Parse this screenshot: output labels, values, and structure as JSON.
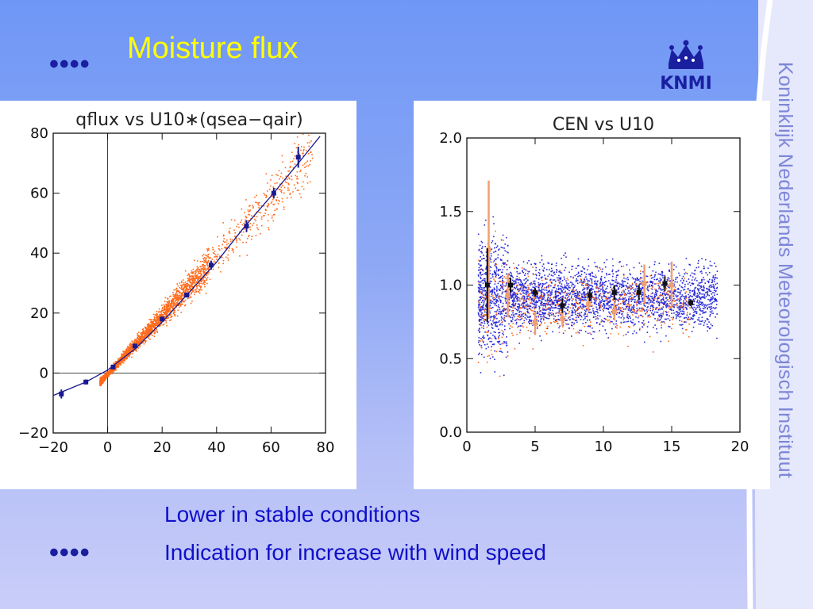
{
  "slide": {
    "title": "Moisture flux",
    "bullet_marker": "••••",
    "bullets": [
      "Lower in stable conditions",
      "Indication for increase with wind speed"
    ],
    "vertical_text": "Koninklijk Nederlands Meteorologisch Instituut",
    "logo_text": "KNMI",
    "colors": {
      "title": "#ffff00",
      "bullet_text": "#1010c8",
      "bullet_marker": "#1a1fa0",
      "scatter_orange": "#ff6a1a",
      "scatter_blue": "#2a2ad8",
      "errorbar_orange": "#f0a070",
      "fit_line": "#1a1a90"
    }
  },
  "chart_data": [
    {
      "type": "scatter",
      "title": "qflux vs U10∗(qsea−qair)",
      "xlim": [
        -20,
        80
      ],
      "ylim": [
        -20,
        80
      ],
      "xticks": [
        "−20",
        "0",
        "20",
        "40",
        "60",
        "80"
      ],
      "yticks": [
        "−20",
        "0",
        "20",
        "40",
        "60",
        "80"
      ],
      "xtick_values": [
        -20,
        0,
        20,
        40,
        60,
        80
      ],
      "ytick_values": [
        -20,
        0,
        20,
        40,
        60,
        80
      ],
      "grid": false,
      "zero_lines": true,
      "series": [
        {
          "kind": "scatter",
          "color": "#ff6a1a",
          "approx_relation": "y ≈ x (dense cloud from about -3 to 45, sparse to 75)"
        },
        {
          "kind": "line",
          "color": "#1a1a90",
          "x": [
            -20,
            -8,
            0,
            10,
            20,
            30,
            40,
            50,
            60,
            70,
            78
          ],
          "y": [
            -7.5,
            -3,
            1,
            8,
            17,
            27,
            37,
            48.5,
            59,
            70,
            79
          ]
        },
        {
          "kind": "binned_means",
          "color": "#1a1a90",
          "x": [
            -17,
            -8,
            2,
            10,
            20,
            29,
            38,
            51,
            61,
            70
          ],
          "y": [
            -7,
            -3,
            2,
            9,
            18,
            26,
            36,
            49,
            60,
            72
          ],
          "err": [
            1.5,
            0.8,
            0.5,
            0.5,
            0.6,
            0.8,
            1.5,
            2.0,
            1.8,
            3.5
          ]
        }
      ]
    },
    {
      "type": "scatter",
      "title": "CEN        vs U10",
      "xlim": [
        0,
        20
      ],
      "ylim": [
        0,
        2.0
      ],
      "xticks": [
        "0",
        "5",
        "10",
        "15",
        "20"
      ],
      "yticks": [
        "0.0",
        "0.5",
        "1.0",
        "1.5",
        "2.0"
      ],
      "xtick_values": [
        0,
        5,
        10,
        15,
        20
      ],
      "ytick_values": [
        0,
        0.5,
        1.0,
        1.5,
        2.0
      ],
      "grid": false,
      "series": [
        {
          "kind": "scatter",
          "color": "#2a2ad8",
          "approx_relation": "x 0.8–19, y ≈ 0.9 ± 0.3"
        },
        {
          "kind": "scatter",
          "color": "#ff6a1a",
          "approx_relation": "x 0.8–17, y ≈ 0.9 ± 0.3"
        },
        {
          "kind": "binned_means",
          "color": "#111111",
          "x": [
            1.5,
            3.2,
            5.0,
            7.0,
            9.0,
            10.8,
            12.6,
            14.5,
            16.4
          ],
          "y": [
            1.0,
            1.0,
            0.95,
            0.86,
            0.93,
            0.95,
            0.95,
            1.01,
            0.88
          ],
          "err": [
            0.25,
            0.05,
            0.03,
            0.05,
            0.04,
            0.05,
            0.05,
            0.05,
            0.02
          ]
        },
        {
          "kind": "binned_means",
          "color": "#f0a070",
          "x": [
            1.6,
            3.0,
            5.0,
            7.0,
            8.9,
            10.8,
            13.0,
            15.0
          ],
          "y": [
            1.24,
            0.93,
            0.74,
            0.77,
            0.87,
            0.82,
            1.01,
            1.0
          ],
          "err": [
            0.47,
            0.15,
            0.08,
            0.05,
            0.05,
            0.06,
            0.13,
            0.16
          ]
        }
      ]
    }
  ]
}
